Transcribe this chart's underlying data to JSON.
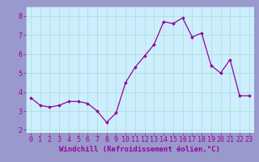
{
  "x": [
    0,
    1,
    2,
    3,
    4,
    5,
    6,
    7,
    8,
    9,
    10,
    11,
    12,
    13,
    14,
    15,
    16,
    17,
    18,
    19,
    20,
    21,
    22,
    23
  ],
  "y": [
    3.7,
    3.3,
    3.2,
    3.3,
    3.5,
    3.5,
    3.4,
    3.0,
    2.4,
    2.9,
    4.5,
    5.3,
    5.9,
    6.5,
    7.7,
    7.6,
    7.9,
    6.9,
    7.1,
    5.4,
    5.0,
    5.7,
    3.8,
    3.8
  ],
  "line_color": "#990099",
  "marker": "D",
  "markersize": 2.0,
  "linewidth": 0.9,
  "xlabel": "Windchill (Refroidissement éolien,°C)",
  "xlim": [
    -0.5,
    23.5
  ],
  "ylim": [
    1.85,
    8.5
  ],
  "yticks": [
    2,
    3,
    4,
    5,
    6,
    7,
    8
  ],
  "xticks": [
    0,
    1,
    2,
    3,
    4,
    5,
    6,
    7,
    8,
    9,
    10,
    11,
    12,
    13,
    14,
    15,
    16,
    17,
    18,
    19,
    20,
    21,
    22,
    23
  ],
  "background_color": "#cceeff",
  "grid_color": "#aaddcc",
  "tick_color": "#990099",
  "label_color": "#990099",
  "xlabel_fontsize": 6.5,
  "tick_fontsize": 6.0,
  "fig_bg": "#9999cc",
  "spine_color": "#9999cc"
}
